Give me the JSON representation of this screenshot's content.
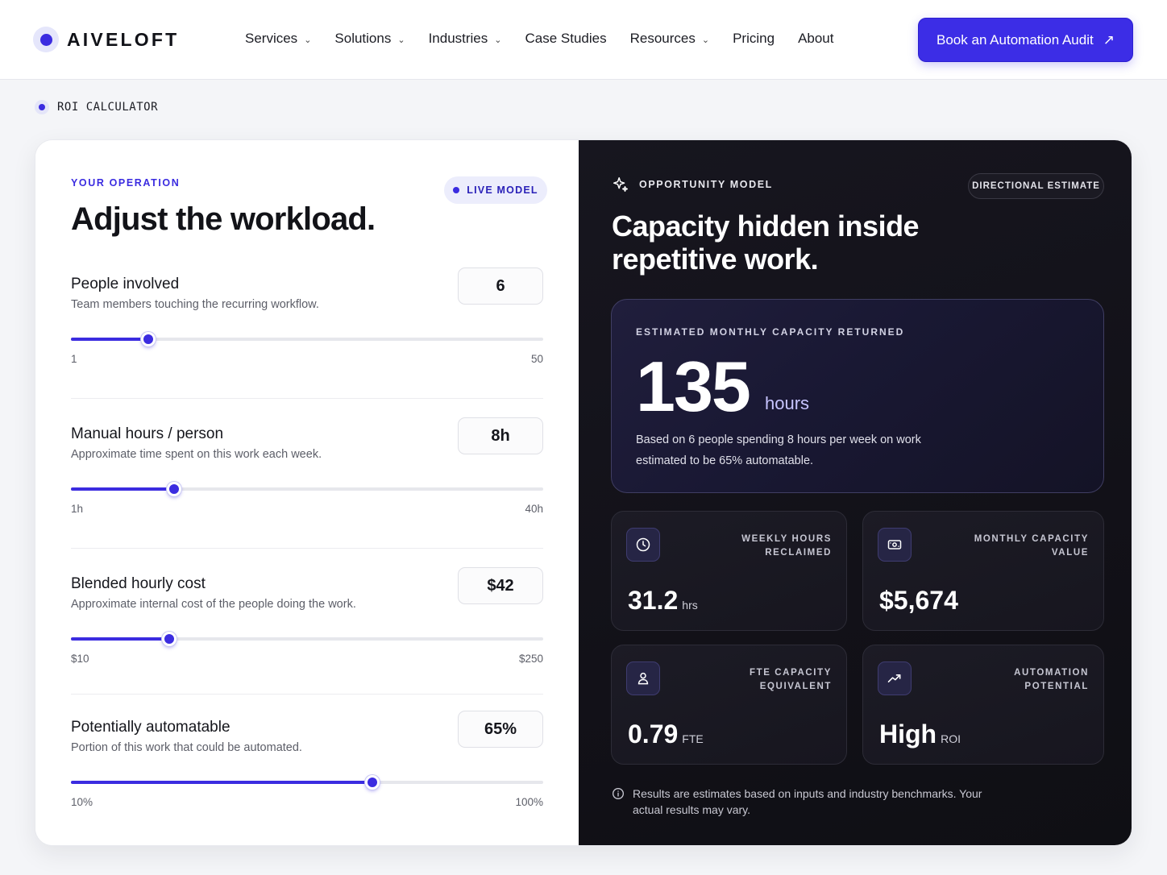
{
  "brand": {
    "name": "AIVELOFT",
    "accent": "#3b2ce0",
    "dark_bg": "#121118"
  },
  "nav": {
    "items": [
      {
        "label": "Services",
        "dropdown": true
      },
      {
        "label": "Solutions",
        "dropdown": true
      },
      {
        "label": "Industries",
        "dropdown": true
      },
      {
        "label": "Case Studies",
        "dropdown": false
      },
      {
        "label": "Resources",
        "dropdown": true
      },
      {
        "label": "Pricing",
        "dropdown": false
      },
      {
        "label": "About",
        "dropdown": false
      }
    ],
    "cta_label": "Book an Automation Audit",
    "cta_icon": "arrow-up-right-icon"
  },
  "eyebrow": "ROI CALCULATOR",
  "left": {
    "kicker": "YOUR OPERATION",
    "title": "Adjust the workload.",
    "live_badge": "LIVE MODEL",
    "controls": [
      {
        "title": "People involved",
        "desc": "Team members touching the recurring workflow.",
        "value": "6",
        "min_label": "1",
        "max_label": "50",
        "level_pct": 16.4
      },
      {
        "title": "Manual hours / person",
        "desc": "Approximate time spent on this work each week.",
        "value": "8h",
        "min_label": "1h",
        "max_label": "40h",
        "level_pct": 21.8
      },
      {
        "title": "Blended hourly cost",
        "desc": "Approximate internal cost of the people doing the work.",
        "value": "$42",
        "min_label": "$10",
        "max_label": "$250",
        "level_pct": 20.8
      },
      {
        "title": "Potentially automatable",
        "desc": "Portion of this work that could be automated.",
        "value": "65%",
        "min_label": "10%",
        "max_label": "100%",
        "level_pct": 63.8
      }
    ]
  },
  "right": {
    "kicker": "OPPORTUNITY MODEL",
    "badge": "DIRECTIONAL ESTIMATE",
    "title": "Capacity hidden inside repetitive work.",
    "hero": {
      "kicker": "ESTIMATED MONTHLY CAPACITY RETURNED",
      "value": "135",
      "unit": "hours",
      "desc": "Based on 6 people spending 8 hours per week on work estimated to be 65% automatable."
    },
    "stats": [
      {
        "label": "WEEKLY HOURS RECLAIMED",
        "value": "31.2",
        "unit": "hrs",
        "icon": "clock-icon"
      },
      {
        "label": "MONTHLY CAPACITY VALUE",
        "value": "$5,674",
        "unit": "",
        "icon": "cash-icon"
      },
      {
        "label": "FTE CAPACITY EQUIVALENT",
        "value": "0.79",
        "unit": "FTE",
        "icon": "user-icon"
      },
      {
        "label": "AUTOMATION POTENTIAL",
        "value": "High",
        "unit": "ROI",
        "icon": "trending-up-icon"
      }
    ],
    "disclaimer": "Results are estimates based on inputs and industry benchmarks. Your actual results may vary."
  }
}
